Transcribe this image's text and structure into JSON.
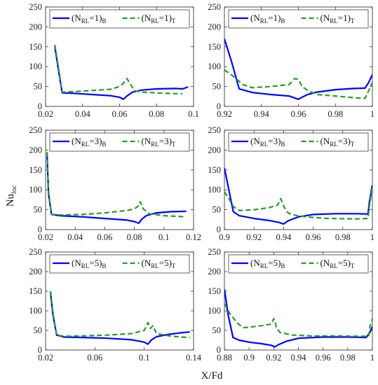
{
  "figure": {
    "xlabel": "X/Fd",
    "ylabel_main": "Nu",
    "ylabel_sub": "loc"
  },
  "colors": {
    "bottom": "#0000ff",
    "top": "#2a9a2a"
  },
  "chart_data": [
    {
      "type": "line",
      "xlim": [
        0.02,
        0.1
      ],
      "ylim": [
        0,
        250
      ],
      "xticks": [
        0.02,
        0.04,
        0.06,
        0.08,
        0.1
      ],
      "xtick_labels": [
        "0.02",
        "0.04",
        "0.06",
        "0.08",
        "0.1"
      ],
      "yticks": [
        0,
        50,
        100,
        150,
        200,
        250
      ],
      "ytick_labels": [
        "0",
        "50",
        "100",
        "150",
        "200",
        "250"
      ],
      "legend": {
        "placement": "top",
        "entries": [
          {
            "main": "(N",
            "sub1": "RL",
            "mid": "=1)",
            "sub2": "B"
          },
          {
            "main": "(N",
            "sub1": "RL",
            "mid": "=1)",
            "sub2": "T"
          }
        ]
      },
      "series": [
        {
          "style": "solid",
          "x": [
            0.025,
            0.027,
            0.029,
            0.035,
            0.045,
            0.055,
            0.06,
            0.062,
            0.064,
            0.067,
            0.072,
            0.08,
            0.09,
            0.094,
            0.097
          ],
          "y": [
            150,
            90,
            34,
            33,
            30,
            27,
            23,
            18,
            26,
            36,
            41,
            44,
            45,
            44,
            49
          ]
        },
        {
          "style": "dashed",
          "x": [
            0.025,
            0.027,
            0.029,
            0.035,
            0.045,
            0.055,
            0.06,
            0.062,
            0.064,
            0.066,
            0.068,
            0.072,
            0.08,
            0.09,
            0.094
          ],
          "y": [
            155,
            95,
            36,
            37,
            40,
            43,
            50,
            58,
            70,
            55,
            40,
            36,
            34,
            32,
            32
          ]
        }
      ]
    },
    {
      "type": "line",
      "xlim": [
        0.92,
        1.0
      ],
      "ylim": [
        0,
        250
      ],
      "xticks": [
        0.92,
        0.94,
        0.96,
        0.98,
        1.0
      ],
      "xtick_labels": [
        "0.92",
        "0.94",
        "0.96",
        "0.98",
        "1"
      ],
      "yticks": [
        0,
        50,
        100,
        150,
        200,
        250
      ],
      "ytick_labels": [
        "0",
        "50",
        "100",
        "150",
        "200",
        "250"
      ],
      "legend": {
        "placement": "top",
        "entries": [
          {
            "main": "(N",
            "sub1": "RL",
            "mid": "=1)",
            "sub2": "B"
          },
          {
            "main": "(N",
            "sub1": "RL",
            "mid": "=1)",
            "sub2": "T"
          }
        ]
      },
      "series": [
        {
          "style": "solid",
          "x": [
            0.92,
            0.924,
            0.928,
            0.935,
            0.945,
            0.955,
            0.96,
            0.962,
            0.965,
            0.97,
            0.98,
            0.99,
            0.996,
            0.998,
            1.0
          ],
          "y": [
            170,
            110,
            44,
            35,
            30,
            26,
            18,
            23,
            30,
            36,
            42,
            45,
            46,
            60,
            80
          ]
        },
        {
          "style": "dashed",
          "x": [
            0.92,
            0.925,
            0.93,
            0.935,
            0.945,
            0.955,
            0.958,
            0.96,
            0.962,
            0.965,
            0.97,
            0.98,
            0.99,
            0.996,
            0.998,
            1.0
          ],
          "y": [
            92,
            75,
            55,
            47,
            50,
            55,
            70,
            68,
            50,
            40,
            30,
            26,
            22,
            20,
            40,
            60
          ]
        }
      ]
    },
    {
      "type": "line",
      "xlim": [
        0.02,
        0.12
      ],
      "ylim": [
        0,
        250
      ],
      "xticks": [
        0.02,
        0.04,
        0.06,
        0.08,
        0.1,
        0.12
      ],
      "xtick_labels": [
        "0.02",
        "0.04",
        "0.06",
        "0.08",
        "0.1",
        "0.12"
      ],
      "yticks": [
        0,
        50,
        100,
        150,
        200,
        250
      ],
      "ytick_labels": [
        "0",
        "50",
        "100",
        "150",
        "200",
        "250"
      ],
      "legend": {
        "placement": "top",
        "entries": [
          {
            "main": "(N",
            "sub1": "RL",
            "mid": "=3)",
            "sub2": "B"
          },
          {
            "main": "(N",
            "sub1": "RL",
            "mid": "=3)",
            "sub2": "T"
          }
        ]
      },
      "series": [
        {
          "style": "solid",
          "x": [
            0.021,
            0.022,
            0.024,
            0.03,
            0.045,
            0.06,
            0.075,
            0.08,
            0.083,
            0.085,
            0.088,
            0.095,
            0.105,
            0.115
          ],
          "y": [
            190,
            90,
            38,
            35,
            32,
            28,
            24,
            20,
            16,
            26,
            35,
            42,
            45,
            46
          ]
        },
        {
          "style": "dashed",
          "x": [
            0.021,
            0.022,
            0.024,
            0.03,
            0.045,
            0.06,
            0.075,
            0.08,
            0.083,
            0.084,
            0.086,
            0.09,
            0.1,
            0.115
          ],
          "y": [
            195,
            95,
            38,
            37,
            38,
            42,
            48,
            52,
            60,
            70,
            52,
            40,
            35,
            32
          ]
        }
      ]
    },
    {
      "type": "line",
      "xlim": [
        0.9,
        1.0
      ],
      "ylim": [
        0,
        250
      ],
      "xticks": [
        0.9,
        0.92,
        0.94,
        0.96,
        0.98,
        1.0
      ],
      "xtick_labels": [
        "0.9",
        "0.92",
        "0.94",
        "0.96",
        "0.98",
        "1"
      ],
      "yticks": [
        0,
        50,
        100,
        150,
        200,
        250
      ],
      "ytick_labels": [
        "0",
        "50",
        "100",
        "150",
        "200",
        "250"
      ],
      "legend": {
        "placement": "top",
        "entries": [
          {
            "main": "(N",
            "sub1": "RL",
            "mid": "=3)",
            "sub2": "B"
          },
          {
            "main": "(N",
            "sub1": "RL",
            "mid": "=3)",
            "sub2": "T"
          }
        ]
      },
      "series": [
        {
          "style": "solid",
          "x": [
            0.9,
            0.903,
            0.906,
            0.91,
            0.92,
            0.93,
            0.937,
            0.94,
            0.943,
            0.95,
            0.96,
            0.975,
            0.99,
            0.997,
            0.998,
            1.0
          ],
          "y": [
            155,
            100,
            45,
            35,
            28,
            23,
            18,
            14,
            22,
            32,
            38,
            40,
            40,
            39,
            70,
            112
          ]
        },
        {
          "style": "dashed",
          "x": [
            0.9,
            0.903,
            0.906,
            0.91,
            0.92,
            0.93,
            0.936,
            0.938,
            0.94,
            0.942,
            0.945,
            0.955,
            0.97,
            0.99,
            0.997,
            0.998,
            1.0
          ],
          "y": [
            95,
            78,
            58,
            48,
            50,
            55,
            62,
            78,
            60,
            45,
            38,
            32,
            28,
            27,
            28,
            60,
            108
          ]
        }
      ]
    },
    {
      "type": "line",
      "xlim": [
        0.02,
        0.14
      ],
      "ylim": [
        0,
        250
      ],
      "xticks": [
        0.02,
        0.06,
        0.1,
        0.14
      ],
      "xtick_labels": [
        "0.02",
        "0.06",
        "0.1",
        "0.14"
      ],
      "yticks": [
        0,
        50,
        100,
        150,
        200,
        250
      ],
      "ytick_labels": [
        "0",
        "50",
        "100",
        "150",
        "200",
        "250"
      ],
      "legend": {
        "placement": "top",
        "entries": [
          {
            "main": "(N",
            "sub1": "RL",
            "mid": "=5)",
            "sub2": "B"
          },
          {
            "main": "(N",
            "sub1": "RL",
            "mid": "=5)",
            "sub2": "T"
          }
        ]
      },
      "series": [
        {
          "style": "solid",
          "x": [
            0.024,
            0.026,
            0.029,
            0.035,
            0.05,
            0.07,
            0.09,
            0.1,
            0.103,
            0.106,
            0.11,
            0.12,
            0.13,
            0.137
          ],
          "y": [
            145,
            90,
            38,
            33,
            32,
            30,
            26,
            20,
            15,
            26,
            34,
            40,
            44,
            46
          ]
        },
        {
          "style": "dashed",
          "x": [
            0.024,
            0.026,
            0.029,
            0.035,
            0.05,
            0.07,
            0.09,
            0.1,
            0.103,
            0.105,
            0.107,
            0.11,
            0.12,
            0.13,
            0.137
          ],
          "y": [
            150,
            95,
            38,
            35,
            36,
            38,
            42,
            50,
            70,
            55,
            62,
            42,
            36,
            33,
            32
          ]
        }
      ]
    },
    {
      "type": "line",
      "xlim": [
        0.88,
        1.0
      ],
      "ylim": [
        0,
        250
      ],
      "xticks": [
        0.88,
        0.9,
        0.92,
        0.94,
        0.96,
        0.98,
        1.0
      ],
      "xtick_labels": [
        "0.88",
        "0.9",
        "0.92",
        "0.94",
        "0.96",
        "0.98",
        "1"
      ],
      "yticks": [
        0,
        50,
        100,
        150,
        200,
        250
      ],
      "ytick_labels": [
        "0",
        "50",
        "100",
        "150",
        "200",
        "250"
      ],
      "legend": {
        "placement": "top",
        "entries": [
          {
            "main": "(N",
            "sub1": "RL",
            "mid": "=5)",
            "sub2": "B"
          },
          {
            "main": "(N",
            "sub1": "RL",
            "mid": "=5)",
            "sub2": "T"
          }
        ]
      },
      "series": [
        {
          "style": "solid",
          "x": [
            0.88,
            0.883,
            0.887,
            0.892,
            0.9,
            0.91,
            0.918,
            0.921,
            0.924,
            0.93,
            0.94,
            0.96,
            0.98,
            0.995,
            0.998,
            1.0
          ],
          "y": [
            155,
            90,
            32,
            25,
            20,
            16,
            12,
            8,
            14,
            22,
            30,
            33,
            33,
            32,
            45,
            60
          ]
        },
        {
          "style": "dashed",
          "x": [
            0.88,
            0.884,
            0.89,
            0.895,
            0.9,
            0.91,
            0.918,
            0.92,
            0.921,
            0.922,
            0.925,
            0.935,
            0.95,
            0.97,
            0.99,
            0.997,
            0.998,
            1.0
          ],
          "y": [
            118,
            95,
            70,
            57,
            58,
            62,
            66,
            80,
            75,
            58,
            45,
            38,
            36,
            36,
            35,
            35,
            60,
            80
          ]
        }
      ]
    }
  ]
}
